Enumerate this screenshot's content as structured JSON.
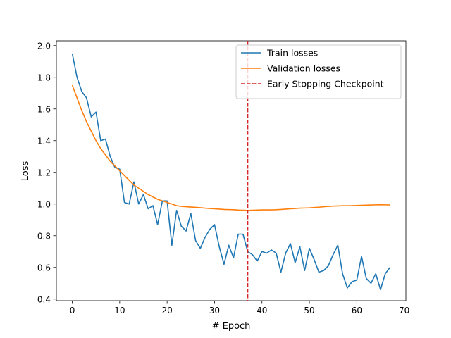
{
  "chart_data": {
    "type": "line",
    "title": "",
    "xlabel": "# Epoch",
    "ylabel": "Loss",
    "xlim": [
      -3.35,
      70.35
    ],
    "ylim": [
      0.39,
      2.03
    ],
    "xticks": [
      0,
      10,
      20,
      30,
      40,
      50,
      60,
      70
    ],
    "xtick_labels": [
      "0",
      "10",
      "20",
      "30",
      "40",
      "50",
      "60",
      "70"
    ],
    "yticks": [
      0.4,
      0.6,
      0.8,
      1.0,
      1.2,
      1.4,
      1.6,
      1.8,
      2.0
    ],
    "ytick_labels": [
      "0.4",
      "0.6",
      "0.8",
      "1.0",
      "1.2",
      "1.4",
      "1.6",
      "1.8",
      "2.0"
    ],
    "grid": false,
    "legend_position": "top-right",
    "series": [
      {
        "name": "Train losses",
        "color": "#1f77b4",
        "x": [
          0,
          1,
          2,
          3,
          4,
          5,
          6,
          7,
          8,
          9,
          10,
          11,
          12,
          13,
          14,
          15,
          16,
          17,
          18,
          19,
          20,
          21,
          22,
          23,
          24,
          25,
          26,
          27,
          28,
          29,
          30,
          31,
          32,
          33,
          34,
          35,
          36,
          37,
          38,
          39,
          40,
          41,
          42,
          43,
          44,
          45,
          46,
          47,
          48,
          49,
          50,
          51,
          52,
          53,
          54,
          55,
          56,
          57,
          58,
          59,
          60,
          61,
          62,
          63,
          64,
          65,
          66,
          67
        ],
        "y": [
          1.95,
          1.8,
          1.71,
          1.67,
          1.55,
          1.58,
          1.4,
          1.41,
          1.3,
          1.23,
          1.22,
          1.01,
          1.0,
          1.14,
          1.0,
          1.06,
          0.97,
          0.99,
          0.87,
          1.02,
          1.02,
          0.74,
          0.96,
          0.86,
          0.83,
          0.94,
          0.77,
          0.72,
          0.79,
          0.84,
          0.87,
          0.73,
          0.62,
          0.74,
          0.66,
          0.81,
          0.81,
          0.7,
          0.68,
          0.64,
          0.7,
          0.69,
          0.71,
          0.69,
          0.57,
          0.69,
          0.75,
          0.63,
          0.73,
          0.58,
          0.72,
          0.65,
          0.57,
          0.58,
          0.61,
          0.68,
          0.74,
          0.56,
          0.47,
          0.51,
          0.52,
          0.67,
          0.53,
          0.5,
          0.56,
          0.46,
          0.56,
          0.6
        ]
      },
      {
        "name": "Validation losses",
        "color": "#ff7f0e",
        "x": [
          0,
          1,
          2,
          3,
          4,
          5,
          6,
          7,
          8,
          9,
          10,
          11,
          12,
          13,
          14,
          15,
          16,
          17,
          18,
          19,
          20,
          21,
          22,
          23,
          24,
          25,
          26,
          27,
          28,
          29,
          30,
          31,
          32,
          33,
          34,
          35,
          36,
          37,
          38,
          39,
          40,
          41,
          42,
          43,
          44,
          45,
          46,
          47,
          48,
          49,
          50,
          51,
          52,
          53,
          54,
          55,
          56,
          57,
          58,
          59,
          60,
          61,
          62,
          63,
          64,
          65,
          66,
          67
        ],
        "y": [
          1.75,
          1.67,
          1.59,
          1.52,
          1.46,
          1.4,
          1.35,
          1.31,
          1.27,
          1.24,
          1.21,
          1.18,
          1.15,
          1.12,
          1.1,
          1.08,
          1.06,
          1.045,
          1.03,
          1.02,
          1.01,
          1.0,
          0.99,
          0.985,
          0.983,
          0.981,
          0.979,
          0.977,
          0.974,
          0.972,
          0.97,
          0.968,
          0.966,
          0.965,
          0.964,
          0.962,
          0.961,
          0.96,
          0.961,
          0.962,
          0.963,
          0.963,
          0.963,
          0.964,
          0.966,
          0.968,
          0.97,
          0.972,
          0.974,
          0.975,
          0.976,
          0.978,
          0.98,
          0.983,
          0.985,
          0.987,
          0.988,
          0.989,
          0.989,
          0.99,
          0.991,
          0.992,
          0.993,
          0.994,
          0.995,
          0.996,
          0.995,
          0.994
        ]
      }
    ],
    "vlines": [
      {
        "name": "Early Stopping Checkpoint",
        "x": 37,
        "color": "#d62728",
        "style": "dashed"
      }
    ]
  }
}
